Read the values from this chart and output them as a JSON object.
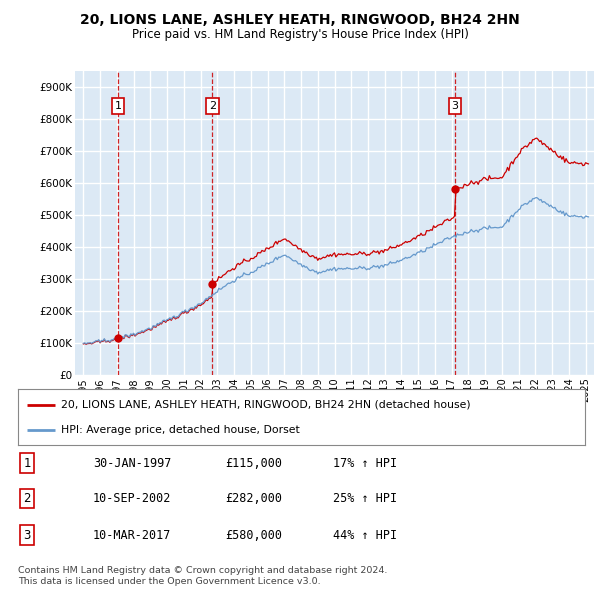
{
  "title": "20, LIONS LANE, ASHLEY HEATH, RINGWOOD, BH24 2HN",
  "subtitle": "Price paid vs. HM Land Registry's House Price Index (HPI)",
  "bg_color": "#dce9f5",
  "grid_color": "#ffffff",
  "sale_dates": [
    1997.08,
    2002.7,
    2017.19
  ],
  "sale_prices": [
    115000,
    282000,
    580000
  ],
  "sale_labels": [
    "1",
    "2",
    "3"
  ],
  "red_line_color": "#cc0000",
  "blue_line_color": "#6699cc",
  "legend_red_label": "20, LIONS LANE, ASHLEY HEATH, RINGWOOD, BH24 2HN (detached house)",
  "legend_blue_label": "HPI: Average price, detached house, Dorset",
  "table_rows": [
    [
      "1",
      "30-JAN-1997",
      "£115,000",
      "17% ↑ HPI"
    ],
    [
      "2",
      "10-SEP-2002",
      "£282,000",
      "25% ↑ HPI"
    ],
    [
      "3",
      "10-MAR-2017",
      "£580,000",
      "44% ↑ HPI"
    ]
  ],
  "footer": "Contains HM Land Registry data © Crown copyright and database right 2024.\nThis data is licensed under the Open Government Licence v3.0.",
  "ylim": [
    0,
    950000
  ],
  "yticks": [
    0,
    100000,
    200000,
    300000,
    400000,
    500000,
    600000,
    700000,
    800000,
    900000
  ],
  "ytick_labels": [
    "£0",
    "£100K",
    "£200K",
    "£300K",
    "£400K",
    "£500K",
    "£600K",
    "£700K",
    "£800K",
    "£900K"
  ],
  "xlim_start": 1994.5,
  "xlim_end": 2025.5,
  "xticks": [
    1995,
    1996,
    1997,
    1998,
    1999,
    2000,
    2001,
    2002,
    2003,
    2004,
    2005,
    2006,
    2007,
    2008,
    2009,
    2010,
    2011,
    2012,
    2013,
    2014,
    2015,
    2016,
    2017,
    2018,
    2019,
    2020,
    2021,
    2022,
    2023,
    2024,
    2025
  ],
  "xtick_labels": [
    "1995",
    "1996",
    "1997",
    "1998",
    "1999",
    "2000",
    "2001",
    "2002",
    "2003",
    "2004",
    "2005",
    "2006",
    "2007",
    "2008",
    "2009",
    "2010",
    "2011",
    "2012",
    "2013",
    "2014",
    "2015",
    "2016",
    "2017",
    "2018",
    "2019",
    "2020",
    "2021",
    "2022",
    "2023",
    "2024",
    "2025"
  ]
}
